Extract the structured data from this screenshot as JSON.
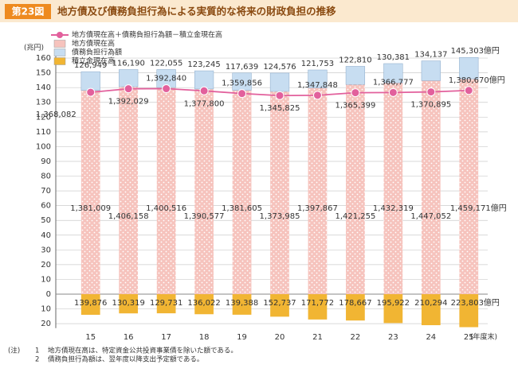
{
  "chart_data": {
    "type": "bar",
    "figure_label": "第23図",
    "title": "地方債及び債務負担行為による実質的な将来の財政負担の推移",
    "y_unit": "(兆円)",
    "x_unit": "(年度末)",
    "categories": [
      "15",
      "16",
      "17",
      "18",
      "19",
      "20",
      "21",
      "22",
      "23",
      "24",
      "25"
    ],
    "ylim": [
      -23,
      163
    ],
    "yticks": [
      {
        "value": -20,
        "label": "20"
      },
      {
        "value": -10,
        "label": "10"
      },
      0,
      10,
      20,
      30,
      40,
      50,
      60,
      70,
      80,
      90,
      100,
      110,
      120,
      130,
      140,
      150,
      160
    ],
    "grid": true,
    "legend": "top-left",
    "series": [
      {
        "name": "地方債現在高＋債務負担行為額－積立金現在高",
        "type": "line",
        "color": "#e2609c",
        "values": [
          136.8082,
          139.2029,
          139.284,
          137.78,
          135.9856,
          134.5825,
          134.7848,
          136.5399,
          136.6777,
          137.0895,
          138.067
        ],
        "value_labels": [
          "1,368,082",
          "1,392,029",
          "1,392,840",
          "1,377,800",
          "1,359,856",
          "1,345,825",
          "1,347,848",
          "1,365,399",
          "1,366,777",
          "1,370,895",
          "1,380,670億円"
        ]
      },
      {
        "name": "地方債現在高",
        "type": "bar",
        "color": "#f6c3bd",
        "values": [
          138.1009,
          140.6158,
          140.0516,
          139.0577,
          138.1605,
          137.3985,
          139.7867,
          142.1255,
          143.2319,
          144.7052,
          145.9171
        ],
        "value_labels": [
          "1,381,009",
          "1,406,158",
          "1,400,516",
          "1,390,577",
          "1,381,605",
          "1,373,985",
          "1,397,867",
          "1,421,255",
          "1,432,319",
          "1,447,052",
          "1,459,171億円"
        ]
      },
      {
        "name": "債務負担行為額",
        "type": "bar",
        "color": "#c7ddf1",
        "values": [
          12.6949,
          11.619,
          12.2055,
          12.3245,
          11.7639,
          12.4576,
          12.1753,
          12.281,
          13.0381,
          13.4137,
          14.5303
        ],
        "value_labels": [
          "126,949",
          "116,190",
          "122,055",
          "123,245",
          "117,639",
          "124,576",
          "121,753",
          "122,810",
          "130,381",
          "134,137",
          "145,303億円"
        ]
      },
      {
        "name": "積立金現在高",
        "type": "bar",
        "color": "#f1b533",
        "values": [
          -13.9876,
          -13.0319,
          -12.9731,
          -13.6022,
          -13.9388,
          -15.2737,
          -17.1772,
          -17.8667,
          -19.5922,
          -21.0294,
          -22.3803
        ],
        "value_labels": [
          "139,876",
          "130,319",
          "129,731",
          "136,022",
          "139,388",
          "152,737",
          "171,772",
          "178,667",
          "195,922",
          "210,294",
          "223,803億円"
        ]
      }
    ],
    "notes": [
      {
        "mark": "(注)",
        "number": "1",
        "text": "地方債現在高は、特定資金公共投資事業債を除いた額である。"
      },
      {
        "number": "2",
        "text": "債務負担行為額は、翌年度以降支出予定額である。"
      }
    ]
  }
}
